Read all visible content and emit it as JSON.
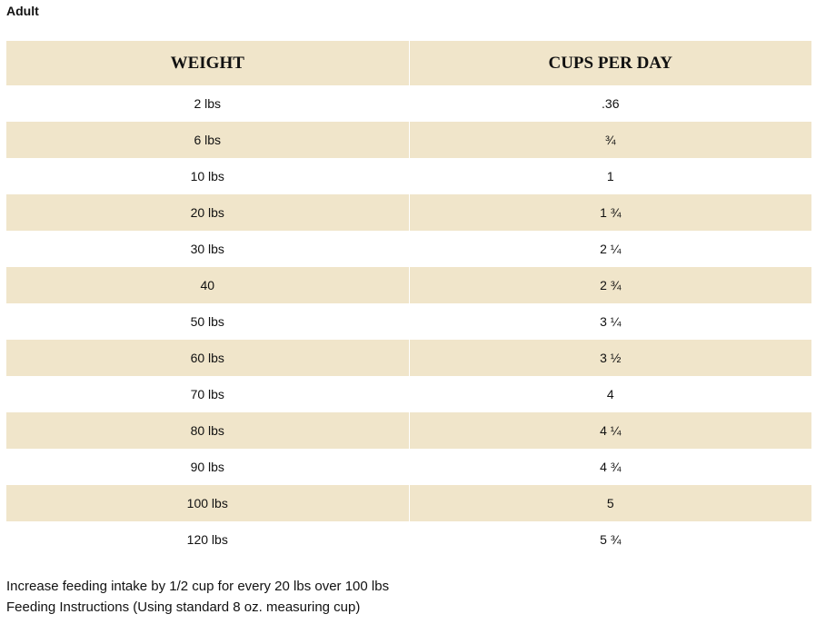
{
  "title": "Adult",
  "table": {
    "header": [
      "WEIGHT",
      "CUPS PER DAY"
    ],
    "rows": [
      [
        "2 lbs",
        ".36"
      ],
      [
        "6 lbs",
        "¾"
      ],
      [
        "10 lbs",
        "1"
      ],
      [
        "20 lbs",
        "1 ¾"
      ],
      [
        "30 lbs",
        "2 ¼"
      ],
      [
        "40",
        "2 ¾"
      ],
      [
        "50 lbs",
        "3 ¼"
      ],
      [
        "60 lbs",
        "3 ½"
      ],
      [
        "70 lbs",
        "4"
      ],
      [
        "80 lbs",
        "4 ¼"
      ],
      [
        "90 lbs",
        "4 ¾"
      ],
      [
        "100 lbs",
        "5"
      ],
      [
        "120 lbs",
        "5 ¾"
      ]
    ]
  },
  "notes": [
    "Increase feeding intake by 1/2 cup for every 20 lbs over 100 lbs",
    "Feeding Instructions (Using standard 8 oz. measuring cup)"
  ]
}
